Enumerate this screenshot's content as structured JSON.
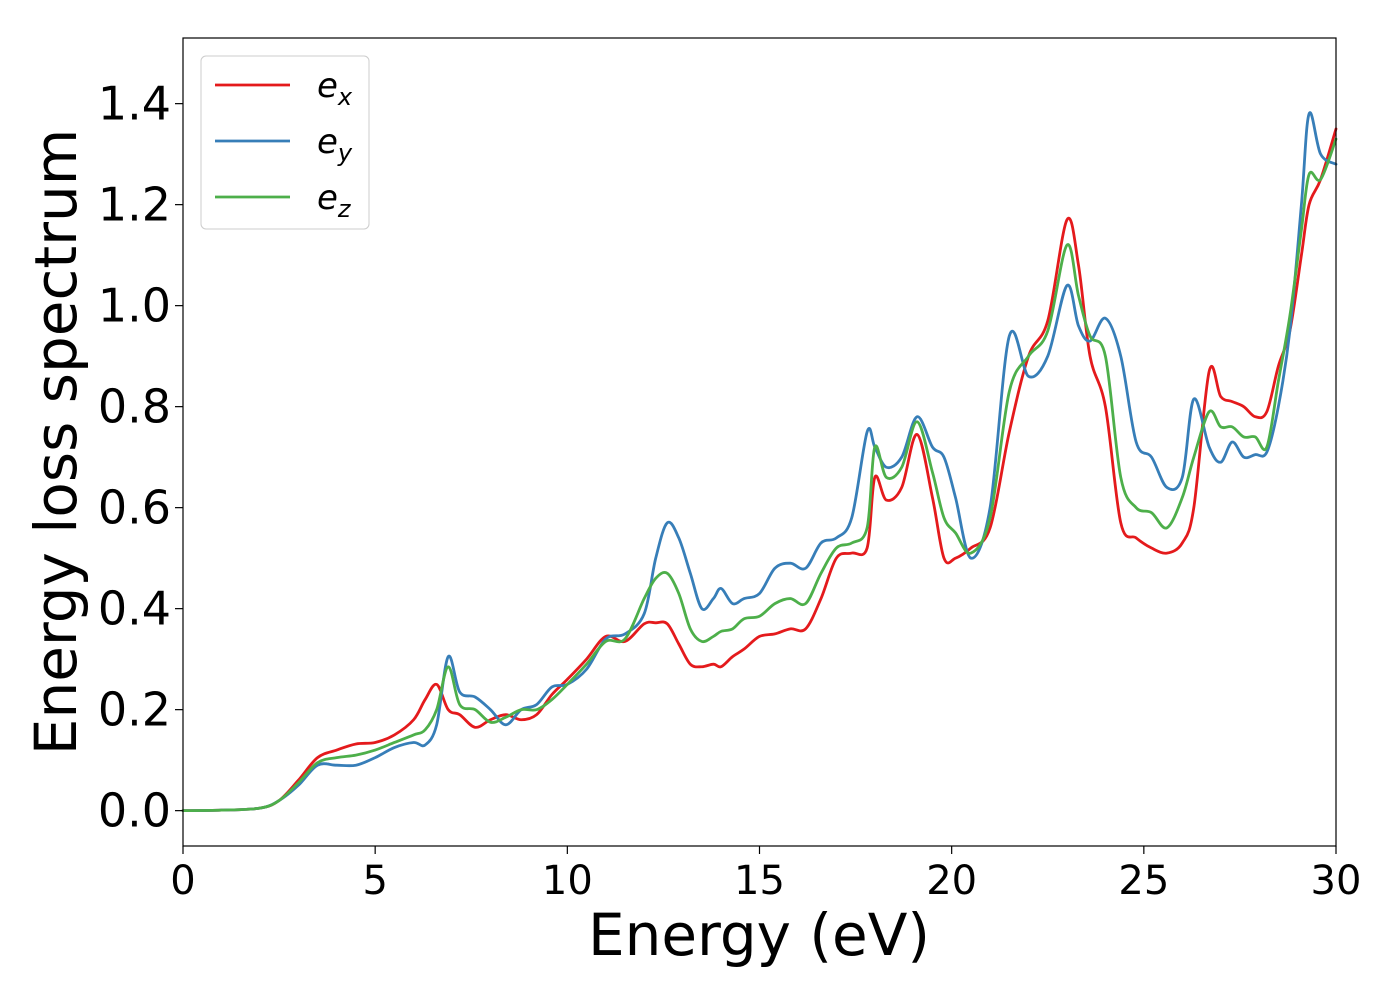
{
  "chart_data": {
    "type": "line",
    "title": "",
    "xlabel": "Energy (eV)",
    "ylabel": "Energy loss spectrum",
    "xlim": [
      0,
      30
    ],
    "ylim": [
      -0.07,
      1.53
    ],
    "xticks": [
      0,
      5,
      10,
      15,
      20,
      25,
      30
    ],
    "xtick_labels": [
      "0",
      "5",
      "10",
      "15",
      "20",
      "25",
      "30"
    ],
    "yticks": [
      0.0,
      0.2,
      0.4,
      0.6,
      0.8,
      1.0,
      1.2,
      1.4
    ],
    "ytick_labels": [
      "0.0",
      "0.2",
      "0.4",
      "0.6",
      "0.8",
      "1.0",
      "1.2",
      "1.4"
    ],
    "grid": false,
    "legend_position": "top-left",
    "x": [
      0,
      1,
      2,
      2.5,
      3,
      3.5,
      4,
      4.5,
      5,
      5.5,
      6,
      6.3,
      6.6,
      6.9,
      7.2,
      7.6,
      8,
      8.4,
      8.8,
      9.2,
      9.6,
      10,
      10.5,
      11,
      11.5,
      12,
      12.3,
      12.6,
      12.9,
      13.2,
      13.5,
      13.8,
      14,
      14.3,
      14.6,
      15,
      15.4,
      15.8,
      16.2,
      16.6,
      17,
      17.4,
      17.8,
      18,
      18.3,
      18.7,
      19.1,
      19.5,
      19.8,
      20.1,
      20.5,
      21,
      21.5,
      22,
      22.5,
      23,
      23.3,
      23.6,
      24,
      24.4,
      24.8,
      25.2,
      25.6,
      26,
      26.3,
      26.7,
      27,
      27.3,
      27.6,
      27.9,
      28.2,
      28.5,
      28.8,
      29.1,
      29.3,
      29.6,
      30
    ],
    "series": [
      {
        "name": "e_x",
        "label_base": "e",
        "label_sub": "x",
        "color": "#e41a1c",
        "values": [
          0,
          0.001,
          0.005,
          0.02,
          0.06,
          0.105,
          0.12,
          0.132,
          0.135,
          0.15,
          0.18,
          0.22,
          0.25,
          0.2,
          0.19,
          0.165,
          0.18,
          0.19,
          0.18,
          0.19,
          0.23,
          0.26,
          0.3,
          0.345,
          0.335,
          0.37,
          0.372,
          0.37,
          0.33,
          0.29,
          0.285,
          0.29,
          0.285,
          0.305,
          0.32,
          0.345,
          0.35,
          0.36,
          0.36,
          0.42,
          0.5,
          0.51,
          0.52,
          0.66,
          0.615,
          0.64,
          0.745,
          0.62,
          0.5,
          0.5,
          0.52,
          0.56,
          0.75,
          0.9,
          0.97,
          1.17,
          1.08,
          0.9,
          0.8,
          0.57,
          0.54,
          0.52,
          0.51,
          0.53,
          0.6,
          0.87,
          0.82,
          0.81,
          0.8,
          0.78,
          0.79,
          0.88,
          0.95,
          1.1,
          1.2,
          1.25,
          1.35
        ]
      },
      {
        "name": "e_y",
        "label_base": "e",
        "label_sub": "y",
        "color": "#377eb8",
        "values": [
          0,
          0.001,
          0.005,
          0.02,
          0.05,
          0.09,
          0.09,
          0.09,
          0.105,
          0.125,
          0.135,
          0.13,
          0.17,
          0.305,
          0.235,
          0.225,
          0.2,
          0.17,
          0.2,
          0.21,
          0.245,
          0.25,
          0.28,
          0.34,
          0.35,
          0.39,
          0.5,
          0.57,
          0.54,
          0.47,
          0.4,
          0.42,
          0.44,
          0.41,
          0.42,
          0.43,
          0.48,
          0.49,
          0.48,
          0.53,
          0.54,
          0.58,
          0.75,
          0.72,
          0.68,
          0.7,
          0.78,
          0.72,
          0.7,
          0.62,
          0.5,
          0.6,
          0.94,
          0.86,
          0.9,
          1.04,
          0.96,
          0.93,
          0.975,
          0.9,
          0.73,
          0.7,
          0.64,
          0.66,
          0.815,
          0.72,
          0.69,
          0.73,
          0.7,
          0.705,
          0.71,
          0.8,
          0.95,
          1.2,
          1.38,
          1.3,
          1.28
        ]
      },
      {
        "name": "e_z",
        "label_base": "e",
        "label_sub": "z",
        "color": "#4daf4a",
        "values": [
          0,
          0.001,
          0.005,
          0.02,
          0.055,
          0.095,
          0.105,
          0.11,
          0.12,
          0.135,
          0.15,
          0.16,
          0.2,
          0.285,
          0.21,
          0.2,
          0.175,
          0.185,
          0.2,
          0.2,
          0.22,
          0.25,
          0.29,
          0.335,
          0.34,
          0.42,
          0.46,
          0.47,
          0.43,
          0.36,
          0.335,
          0.345,
          0.355,
          0.36,
          0.38,
          0.385,
          0.41,
          0.42,
          0.41,
          0.47,
          0.52,
          0.53,
          0.56,
          0.72,
          0.66,
          0.68,
          0.77,
          0.67,
          0.58,
          0.55,
          0.51,
          0.58,
          0.83,
          0.9,
          0.95,
          1.12,
          1.02,
          0.94,
          0.9,
          0.66,
          0.6,
          0.59,
          0.56,
          0.62,
          0.7,
          0.79,
          0.76,
          0.76,
          0.74,
          0.74,
          0.72,
          0.85,
          0.98,
          1.15,
          1.26,
          1.25,
          1.33
        ]
      }
    ]
  }
}
